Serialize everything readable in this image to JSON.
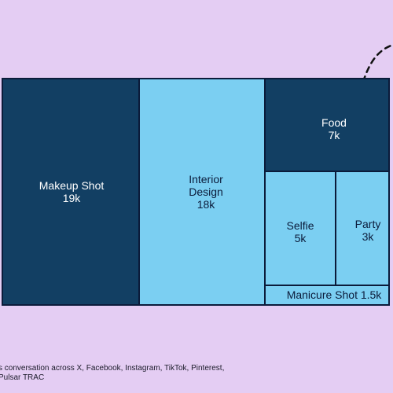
{
  "colors": {
    "background": "#e4cdf3",
    "dark_tile": "#123f63",
    "light_tile": "#7bcff2",
    "border": "#0b1b3a",
    "text_on_dark": "#ffffff",
    "text_on_light": "#0b1b3a"
  },
  "chart_data": {
    "type": "treemap",
    "title": "",
    "items": [
      {
        "name": "Makeup Shot",
        "value_label": "19k",
        "value": 19000,
        "color": "#123f63"
      },
      {
        "name": "Interior Design",
        "value_label": "18k",
        "value": 18000,
        "color": "#7bcff2"
      },
      {
        "name": "Food",
        "value_label": "7k",
        "value": 7000,
        "color": "#123f63"
      },
      {
        "name": "Selfie",
        "value_label": "5k",
        "value": 5000,
        "color": "#7bcff2"
      },
      {
        "name": "Party",
        "value_label": "3k",
        "value": 3000,
        "color": "#7bcff2"
      },
      {
        "name": "Manicure Shot",
        "value_label": "1.5k",
        "value": 1500,
        "color": "#7bcff2"
      }
    ]
  },
  "footer": {
    "line1": "s conversation across X, Facebook, Instagram, TikTok, Pinterest,",
    "line2": "Pulsar TRAC"
  }
}
